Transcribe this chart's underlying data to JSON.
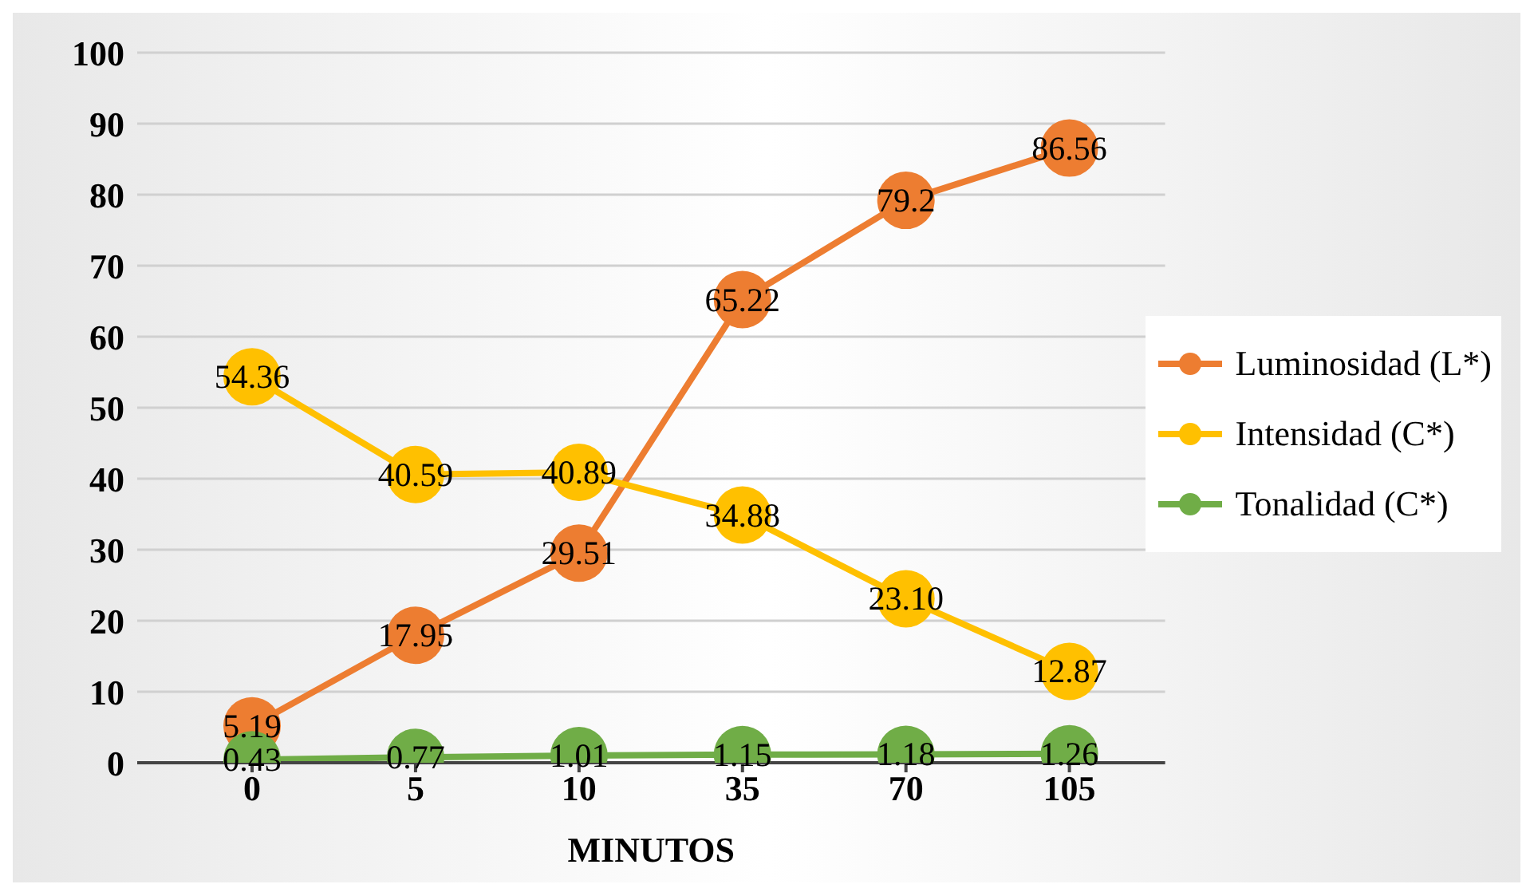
{
  "chart_data": {
    "type": "line",
    "xlabel": "MINUTOS",
    "categories": [
      "0",
      "5",
      "10",
      "35",
      "70",
      "105"
    ],
    "series": [
      {
        "name": "Luminosidad (L*)",
        "color": "#ed7d31",
        "values": [
          5.19,
          17.95,
          29.51,
          65.22,
          79.2,
          86.56
        ],
        "value_labels": [
          "5.19",
          "17.95",
          "29.51",
          "65.22",
          "79.2",
          "86.56"
        ]
      },
      {
        "name": "Intensidad (C*)",
        "color": "#ffc000",
        "values": [
          54.36,
          40.59,
          40.89,
          34.88,
          23.1,
          12.87
        ],
        "value_labels": [
          "54.36",
          "40.59",
          "40.89",
          "34.88",
          "23.10",
          "12.87"
        ]
      },
      {
        "name": "Tonalidad (C*)",
        "color": "#70ad47",
        "values": [
          0.43,
          0.77,
          1.01,
          1.15,
          1.18,
          1.26
        ],
        "value_labels": [
          "0.43",
          "0.77",
          "1.01",
          "1.15",
          "1.18",
          "1.26"
        ]
      }
    ],
    "ylim": [
      0,
      100
    ],
    "yticks": [
      0,
      10,
      20,
      30,
      40,
      50,
      60,
      70,
      80,
      90,
      100
    ],
    "grid": "y",
    "legend": "right",
    "marker": "circle",
    "line_style": "solid"
  }
}
